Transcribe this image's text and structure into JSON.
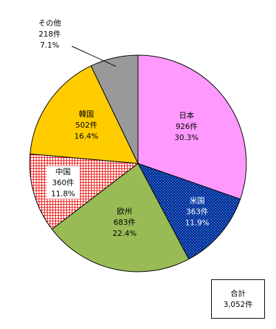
{
  "chart_data": {
    "type": "pie",
    "title": "",
    "start_angle_deg": 0,
    "direction": "clockwise",
    "slices": [
      {
        "name": "日本",
        "count_label": "926件",
        "percent_label": "30.3%",
        "value": 926,
        "color": "#ff99ff",
        "pattern": "solid",
        "label_color": "#000000"
      },
      {
        "name": "米国",
        "count_label": "363件",
        "percent_label": "11.9%",
        "value": 363,
        "color": "#003399",
        "pattern": "dots-blue",
        "label_color": "#ffffff"
      },
      {
        "name": "欧州",
        "count_label": "683件",
        "percent_label": "22.4%",
        "value": 683,
        "color": "#99bb55",
        "pattern": "solid",
        "label_color": "#000000"
      },
      {
        "name": "中国",
        "count_label": "360件",
        "percent_label": "11.8%",
        "value": 360,
        "color": "#ee2222",
        "pattern": "grid-red",
        "label_color": "#000000"
      },
      {
        "name": "韓国",
        "count_label": "502件",
        "percent_label": "16.4%",
        "value": 502,
        "color": "#ffcc00",
        "pattern": "solid",
        "label_color": "#000000"
      },
      {
        "name": "その他",
        "count_label": "218件",
        "percent_label": "7.1%",
        "value": 218,
        "color": "#999999",
        "pattern": "solid",
        "label_color": "#000000"
      }
    ],
    "total": {
      "label": "合計",
      "value_label": "3,052件"
    }
  }
}
